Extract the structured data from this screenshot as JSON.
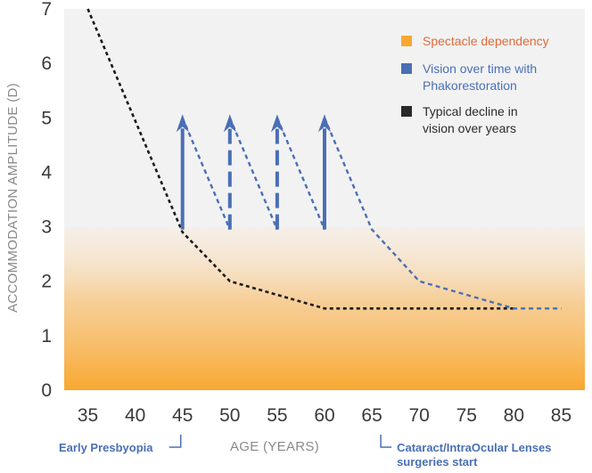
{
  "chart_data": {
    "type": "line",
    "xlabel": "AGE (YEARS)",
    "ylabel": "ACCOMMODATION AMPLITUDE (D)",
    "xlim": [
      32.5,
      87.5
    ],
    "ylim": [
      0,
      7
    ],
    "x_ticks": [
      "35",
      "40",
      "45",
      "50",
      "55",
      "60",
      "65",
      "70",
      "75",
      "80",
      "85"
    ],
    "y_ticks": [
      "0",
      "1",
      "2",
      "3",
      "4",
      "5",
      "6",
      "7"
    ],
    "spectacle_dependency_band": {
      "from": 0,
      "to": 3,
      "color": "#f8a830"
    },
    "series": [
      {
        "name": "Typical decline in vision over years",
        "color": "#1a1a1a",
        "style": "dotted",
        "points": [
          [
            35,
            7.0
          ],
          [
            45,
            2.9
          ],
          [
            50,
            2.0
          ],
          [
            60,
            1.5
          ],
          [
            80,
            1.5
          ]
        ]
      },
      {
        "name": "Vision over time with Phakorestoration",
        "color": "#4a6fb5",
        "style": "dotted",
        "segments": [
          [
            [
              45,
              5.0
            ],
            [
              50,
              2.95
            ]
          ],
          [
            [
              50,
              5.0
            ],
            [
              55,
              2.95
            ]
          ],
          [
            [
              55,
              5.0
            ],
            [
              60,
              2.95
            ]
          ],
          [
            [
              60,
              5.0
            ],
            [
              65,
              2.95
            ],
            [
              70,
              2.0
            ],
            [
              80,
              1.5
            ],
            [
              85,
              1.5
            ]
          ]
        ]
      }
    ],
    "arrows": [
      {
        "x": 45,
        "from": 2.95,
        "to": 5.0,
        "style": "solid"
      },
      {
        "x": 50,
        "from": 2.95,
        "to": 5.0,
        "style": "dashed"
      },
      {
        "x": 55,
        "from": 2.95,
        "to": 5.0,
        "style": "dashed"
      },
      {
        "x": 60,
        "from": 2.95,
        "to": 5.0,
        "style": "solid"
      }
    ],
    "legend": {
      "placement": "top-right",
      "items": [
        {
          "label_lines": [
            "Spectacle dependency"
          ],
          "color": "#f8a830",
          "text_color": "#e06a3a"
        },
        {
          "label_lines": [
            "Vision over time with",
            "Phakorestoration"
          ],
          "color": "#4a6fb5",
          "text_color": "#4a6fb5"
        },
        {
          "label_lines": [
            "Typical decline in",
            "vision over years"
          ],
          "color": "#2a2a2a",
          "text_color": "#2a2a2a"
        }
      ]
    },
    "annotations": [
      {
        "label_lines": [
          "Early Presbyopia"
        ],
        "x": 45,
        "color": "#4a6fb5"
      },
      {
        "label_lines": [
          "Cataract/IntraOcular Lenses",
          "surgeries start"
        ],
        "x": 65,
        "color": "#4a6fb5"
      }
    ]
  }
}
